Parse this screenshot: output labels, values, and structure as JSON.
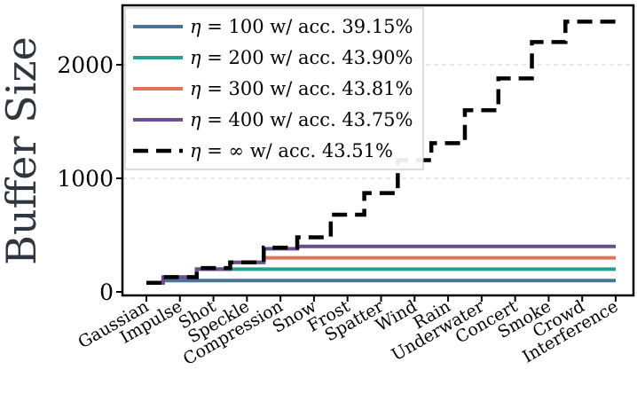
{
  "chart_data": {
    "type": "line",
    "ylabel": "Buffer Size",
    "xlabel": "",
    "ylim": [
      0,
      2500
    ],
    "yticks": [
      0,
      1000,
      2000
    ],
    "ytick_labels": [
      "0",
      "1000",
      "2000"
    ],
    "grid": "horizontal dashed",
    "legend_position": "top-left",
    "categories": [
      "Gaussian",
      "Impulse",
      "Shot",
      "Speckle",
      "Compression",
      "Snow",
      "Frost",
      "Spatter",
      "Wind",
      "Rain",
      "Underwater",
      "Concert",
      "Smoke",
      "Crowd",
      "Interference"
    ],
    "series": [
      {
        "name": "η = 100 w/ acc. 39.15%",
        "eta": "100",
        "acc": "39.15%",
        "color": "#4a7497",
        "style": "solid",
        "values": [
          80,
          100,
          100,
          100,
          100,
          100,
          100,
          100,
          100,
          100,
          100,
          100,
          100,
          100,
          100
        ]
      },
      {
        "name": "η = 200 w/ acc. 43.90%",
        "eta": "200",
        "acc": "43.90%",
        "color": "#2a9d8f",
        "style": "solid",
        "values": [
          80,
          130,
          200,
          200,
          200,
          200,
          200,
          200,
          200,
          200,
          200,
          200,
          200,
          200,
          200
        ]
      },
      {
        "name": "η = 300 w/ acc. 43.81%",
        "eta": "300",
        "acc": "43.81%",
        "color": "#e0735a",
        "style": "solid",
        "values": [
          80,
          130,
          200,
          260,
          300,
          300,
          300,
          300,
          300,
          300,
          300,
          300,
          300,
          300,
          300
        ]
      },
      {
        "name": "η = 400 w/ acc. 43.75%",
        "eta": "400",
        "acc": "43.75%",
        "color": "#6a4c93",
        "style": "solid",
        "values": [
          80,
          130,
          200,
          260,
          380,
          400,
          400,
          400,
          400,
          400,
          400,
          400,
          400,
          400,
          400
        ]
      },
      {
        "name": "η = ∞ w/ acc. 43.51%",
        "eta": "∞",
        "acc": "43.51%",
        "color": "#000000",
        "style": "dashed",
        "values": [
          80,
          130,
          210,
          260,
          390,
          480,
          680,
          870,
          1160,
          1310,
          1600,
          1880,
          2200,
          2380,
          2380
        ]
      }
    ]
  }
}
